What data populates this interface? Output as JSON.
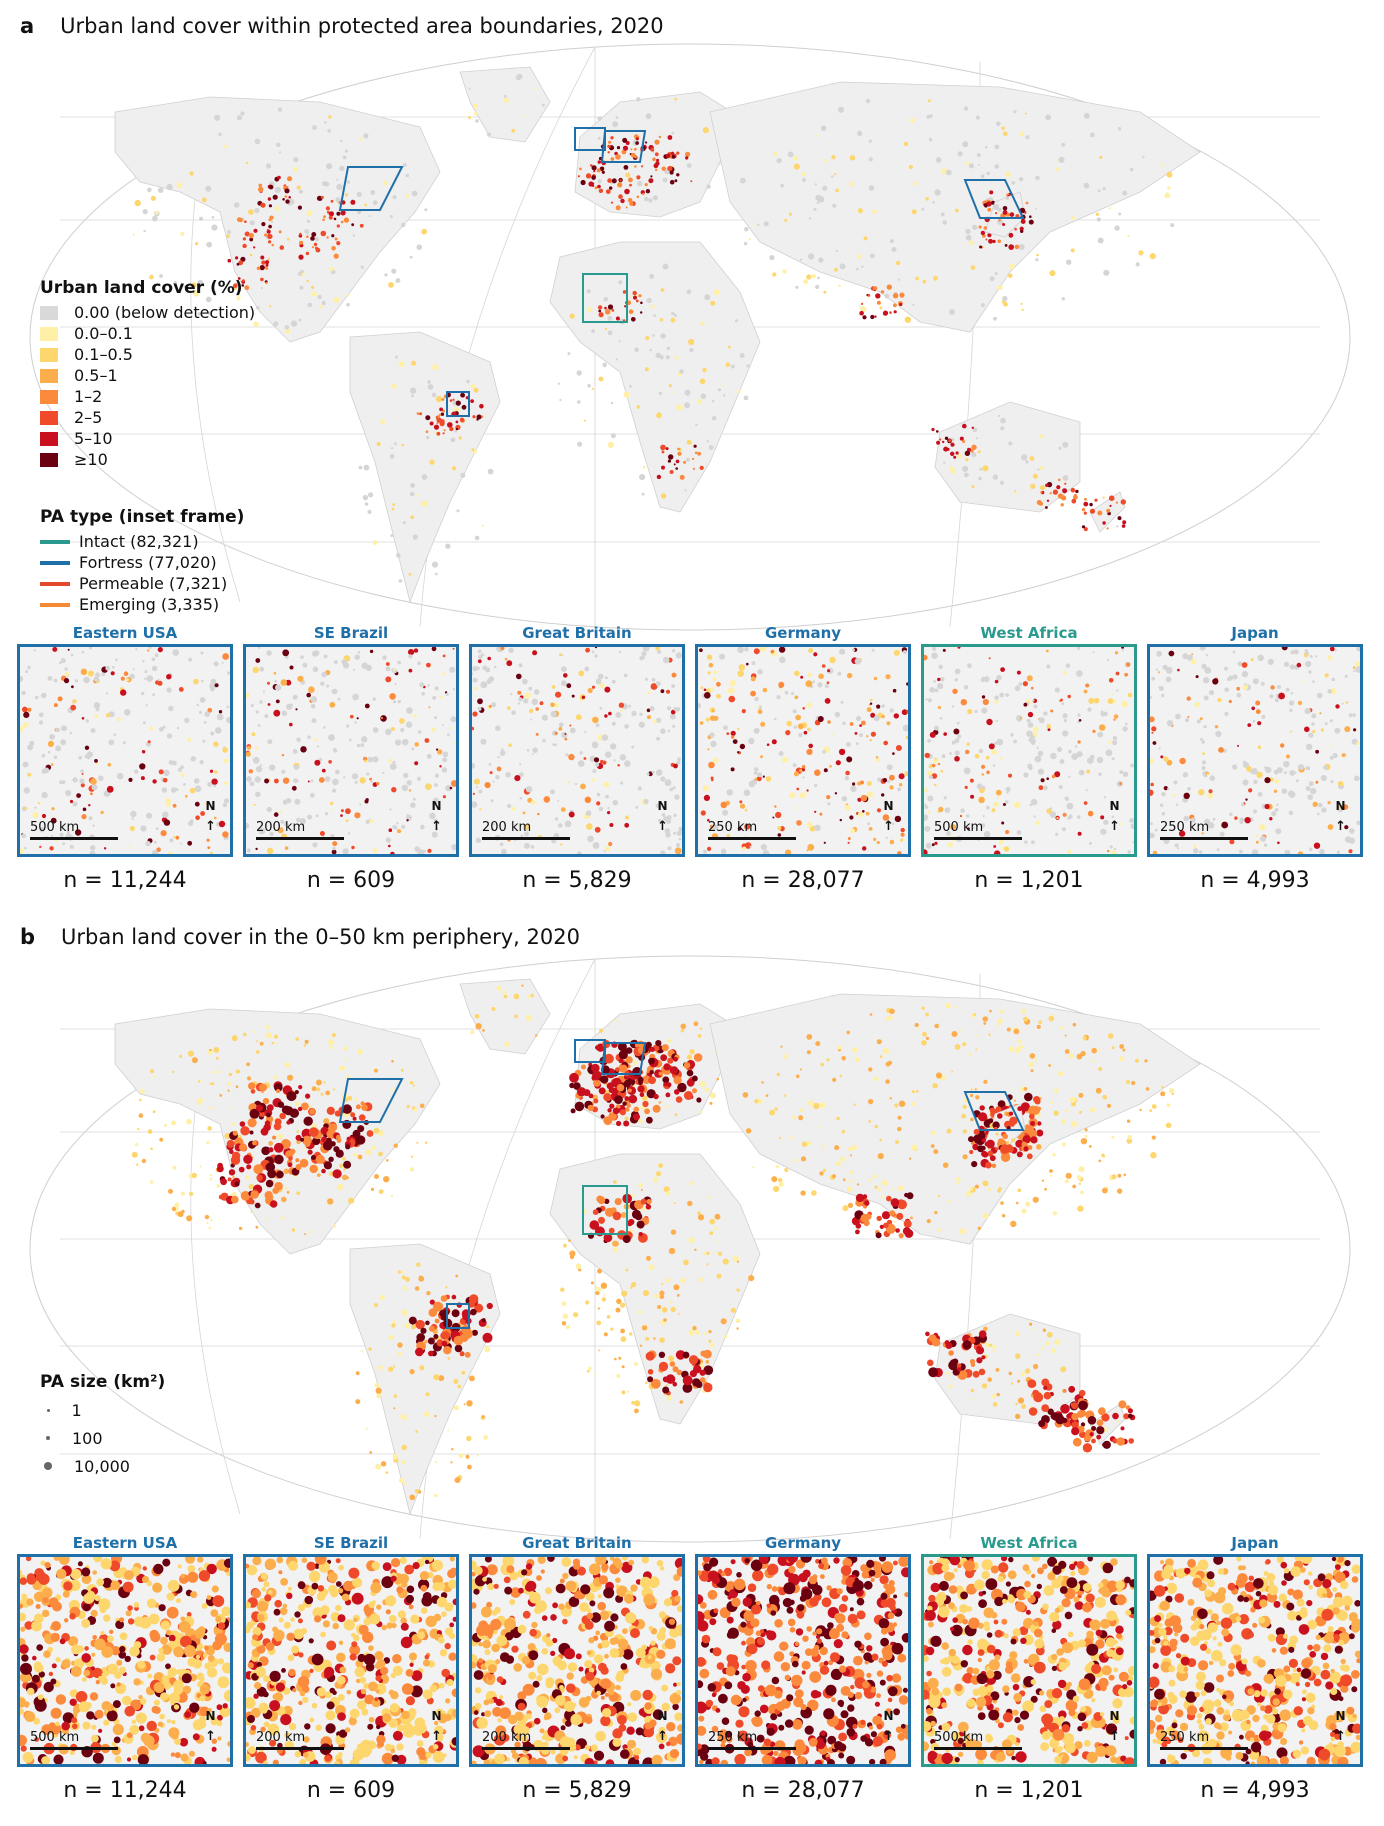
{
  "panel_a": {
    "letter": "a",
    "title": "Urban land cover within protected area boundaries, 2020"
  },
  "panel_b": {
    "letter": "b",
    "title": "Urban land cover in the 0–50 km periphery, 2020"
  },
  "legend_urban": {
    "title": "Urban land cover (%)",
    "items": [
      {
        "label": "0.00  (below detection)",
        "color": "#d9d9d9"
      },
      {
        "label": "0.0–0.1",
        "color": "#fff0a8"
      },
      {
        "label": "0.1–0.5",
        "color": "#fdd66e"
      },
      {
        "label": "0.5–1",
        "color": "#fcae4c"
      },
      {
        "label": "1–2",
        "color": "#fc8a3c"
      },
      {
        "label": "2–5",
        "color": "#ef4a2a"
      },
      {
        "label": "5–10",
        "color": "#c8101e"
      },
      {
        "label": "≥10",
        "color": "#6b0010"
      }
    ]
  },
  "legend_type": {
    "title": "PA type (inset frame)",
    "items": [
      {
        "label": "Intact (82,321)",
        "color": "#2a9a8e"
      },
      {
        "label": "Fortress (77,020)",
        "color": "#1f6fa8"
      },
      {
        "label": "Permeable (7,321)",
        "color": "#e2492b"
      },
      {
        "label": "Emerging (3,335)",
        "color": "#f58a36"
      }
    ]
  },
  "legend_size": {
    "title": "PA size (km²)",
    "items": [
      {
        "label": "1"
      },
      {
        "label": "100"
      },
      {
        "label": "10,000"
      }
    ]
  },
  "insets": [
    {
      "name": "Eastern USA",
      "scale": "500 km",
      "n": "n = 11,244",
      "frame": "#1f6fa8",
      "north": "N"
    },
    {
      "name": "SE Brazil",
      "scale": "200 km",
      "n": "n = 609",
      "frame": "#1f6fa8",
      "north": "N"
    },
    {
      "name": "Great Britain",
      "scale": "200 km",
      "n": "n = 5,829",
      "frame": "#1f6fa8",
      "north": "N"
    },
    {
      "name": "Germany",
      "scale": "250 km",
      "n": "n = 28,077",
      "frame": "#1f6fa8",
      "north": "N"
    },
    {
      "name": "West Africa",
      "scale": "500 km",
      "n": "n = 1,201",
      "frame": "#2a9a8e",
      "north": "N"
    },
    {
      "name": "Japan",
      "scale": "250 km",
      "n": "n = 4,993",
      "frame": "#1f6fa8",
      "north": "N"
    }
  ]
}
